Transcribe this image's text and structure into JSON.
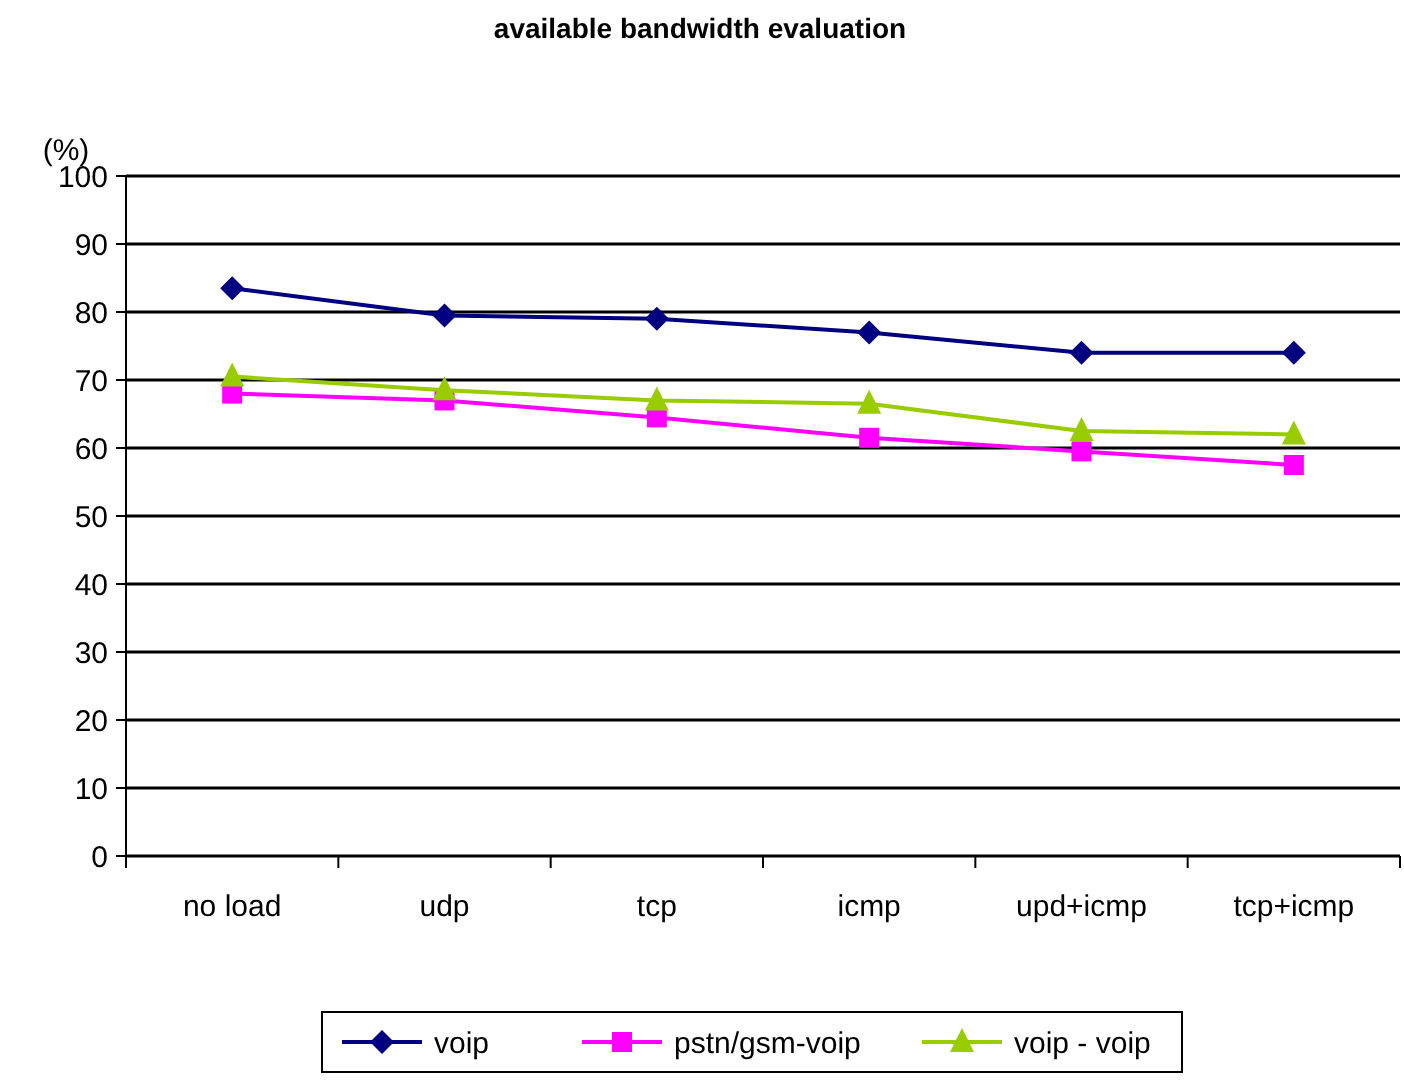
{
  "chart_data": {
    "type": "line",
    "title": "available bandwidth evaluation",
    "ylabel": "(%)",
    "categories": [
      "no load",
      "udp",
      "tcp",
      "icmp",
      "upd+icmp",
      "tcp+icmp"
    ],
    "series": [
      {
        "name": "voip",
        "color": "#000080",
        "marker": "diamond",
        "values": [
          83.5,
          79.5,
          79,
          77,
          74,
          74
        ]
      },
      {
        "name": "pstn/gsm-voip",
        "color": "#ff00ff",
        "marker": "square",
        "values": [
          68,
          67,
          64.5,
          61.5,
          59.5,
          57.5
        ]
      },
      {
        "name": "voip - voip",
        "color": "#99cc00",
        "marker": "triangle",
        "values": [
          70.5,
          68.5,
          67,
          66.5,
          62.5,
          62
        ]
      }
    ],
    "ylim": [
      0,
      100
    ],
    "yticks": [
      0,
      10,
      20,
      30,
      40,
      50,
      60,
      70,
      80,
      90,
      100
    ],
    "grid": "y",
    "legend": "bottom"
  }
}
